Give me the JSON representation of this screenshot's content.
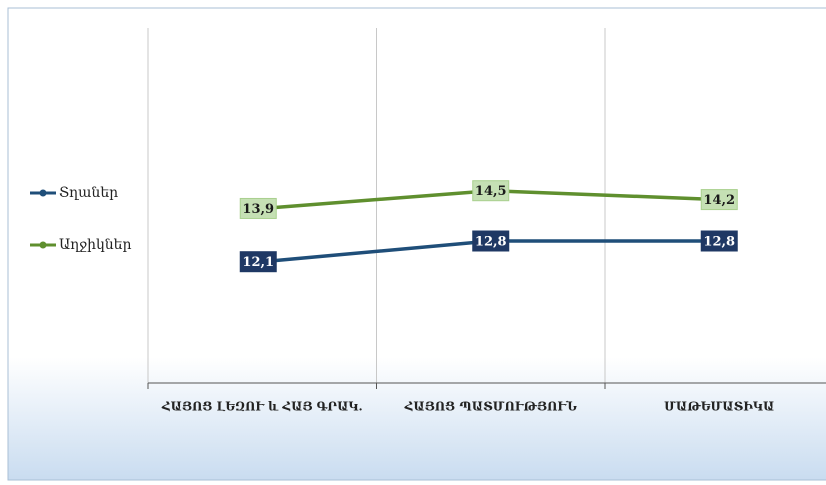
{
  "chart_data": {
    "type": "line",
    "categories": [
      "ՀԱՅՈՑ ԼԵԶՈՒ և ՀԱՅ ԳՐԱԿ.",
      "ՀԱՅՈՑ ՊԱՏՄՈՒԹՅՈՒՆ",
      "ՄԱԹԵՄԱՏԻԿԱ"
    ],
    "series": [
      {
        "name": "Տղաներ",
        "color": "#1f4e79",
        "values": [
          12.1,
          12.8,
          12.8
        ],
        "value_labels": [
          "12,1",
          "12,8",
          "12,8"
        ]
      },
      {
        "name": "Աղջիկներ",
        "color": "#5f8f2e",
        "values": [
          13.9,
          14.5,
          14.2
        ],
        "value_labels": [
          "13,9",
          "14,5",
          "14,2"
        ]
      }
    ],
    "ylim": [
      8,
      20
    ],
    "legend": "left"
  }
}
